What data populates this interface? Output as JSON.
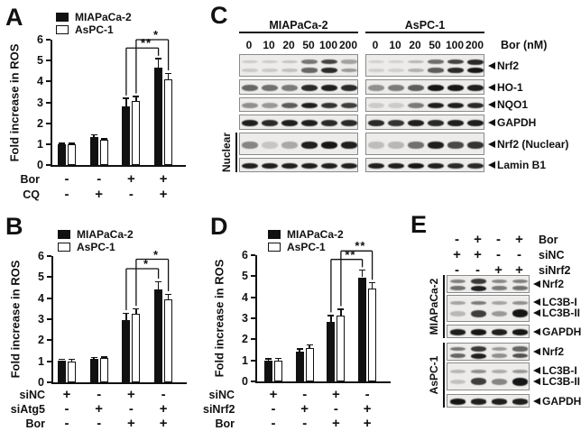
{
  "panels": {
    "A": {
      "letter": "A"
    },
    "B": {
      "letter": "B"
    },
    "C": {
      "letter": "C"
    },
    "D": {
      "letter": "D"
    },
    "E": {
      "letter": "E"
    }
  },
  "colors": {
    "bar_black": "#111111",
    "bar_white": "#ffffff",
    "axis": "#111111"
  },
  "chart_data": [
    {
      "id": "A",
      "type": "bar",
      "title": "",
      "ylabel": "Fold increase in ROS",
      "ylim": [
        0,
        6
      ],
      "yticks": [
        0,
        1,
        2,
        3,
        4,
        5,
        6
      ],
      "legend": [
        "MIAPaCa-2",
        "AsPC-1"
      ],
      "series": [
        {
          "name": "MIAPaCa-2",
          "color": "#111111",
          "values": [
            1.0,
            1.35,
            2.8,
            4.65
          ],
          "errors": [
            0.05,
            0.1,
            0.4,
            0.45
          ]
        },
        {
          "name": "AsPC-1",
          "color": "#ffffff",
          "values": [
            1.0,
            1.2,
            3.05,
            4.1
          ],
          "errors": [
            0.05,
            0.07,
            0.25,
            0.3
          ]
        }
      ],
      "conditions": [
        {
          "label": "Bor",
          "values": [
            "-",
            "-",
            "+",
            "+"
          ]
        },
        {
          "label": "CQ",
          "values": [
            "-",
            "+",
            "-",
            "+"
          ]
        }
      ],
      "significance": [
        {
          "label": "**",
          "from_group": 2,
          "to_group": 3,
          "series": 0,
          "y": 5.6
        },
        {
          "label": "*",
          "from_group": 2,
          "to_group": 3,
          "series": 1,
          "y": 6.0
        }
      ]
    },
    {
      "id": "B",
      "type": "bar",
      "title": "",
      "ylabel": "Fold increase in ROS",
      "ylim": [
        0,
        6
      ],
      "yticks": [
        0,
        1,
        2,
        3,
        4,
        5,
        6
      ],
      "legend": [
        "MIAPaCa-2",
        "AsPC-1"
      ],
      "series": [
        {
          "name": "MIAPaCa-2",
          "color": "#111111",
          "values": [
            1.05,
            1.1,
            2.95,
            4.4
          ],
          "errors": [
            0.06,
            0.08,
            0.35,
            0.4
          ]
        },
        {
          "name": "AsPC-1",
          "color": "#ffffff",
          "values": [
            1.0,
            1.15,
            3.25,
            3.95
          ],
          "errors": [
            0.1,
            0.06,
            0.25,
            0.25
          ]
        }
      ],
      "conditions": [
        {
          "label": "siNC",
          "values": [
            "+",
            "-",
            "+",
            "-"
          ]
        },
        {
          "label": "siAtg5",
          "values": [
            "-",
            "+",
            "-",
            "+"
          ]
        },
        {
          "label": "Bor",
          "values": [
            "-",
            "-",
            "+",
            "+"
          ]
        }
      ],
      "significance": [
        {
          "label": "*",
          "from_group": 2,
          "to_group": 3,
          "series": 0,
          "y": 5.4
        },
        {
          "label": "*",
          "from_group": 2,
          "to_group": 3,
          "series": 1,
          "y": 5.85
        }
      ]
    },
    {
      "id": "D",
      "type": "bar",
      "title": "",
      "ylabel": "Fold increase in ROS",
      "ylim": [
        0,
        6
      ],
      "yticks": [
        0,
        1,
        2,
        3,
        4,
        5,
        6
      ],
      "legend": [
        "MIAPaCa-2",
        "AsPC-1"
      ],
      "series": [
        {
          "name": "MIAPaCa-2",
          "color": "#111111",
          "values": [
            1.0,
            1.4,
            2.85,
            4.95
          ],
          "errors": [
            0.08,
            0.15,
            0.3,
            0.35
          ]
        },
        {
          "name": "AsPC-1",
          "color": "#ffffff",
          "values": [
            1.0,
            1.6,
            3.15,
            4.4
          ],
          "errors": [
            0.1,
            0.15,
            0.3,
            0.3
          ]
        }
      ],
      "conditions": [
        {
          "label": "siNC",
          "values": [
            "+",
            "-",
            "+",
            "-"
          ]
        },
        {
          "label": "siNrf2",
          "values": [
            "-",
            "+",
            "-",
            "+"
          ]
        },
        {
          "label": "Bor",
          "values": [
            "-",
            "-",
            "+",
            "+"
          ]
        }
      ],
      "significance": [
        {
          "label": "**",
          "from_group": 2,
          "to_group": 3,
          "series": 0,
          "y": 5.8
        },
        {
          "label": "**",
          "from_group": 2,
          "to_group": 3,
          "series": 1,
          "y": 6.2
        }
      ]
    }
  ],
  "blots": {
    "C": {
      "groups": [
        {
          "name": "MIAPaCa-2"
        },
        {
          "name": "AsPC-1"
        }
      ],
      "doses": [
        "0",
        "10",
        "20",
        "50",
        "100",
        "200"
      ],
      "unit": "Bor (nM)",
      "nuclear_label": "Nuclear",
      "rows": [
        {
          "label": "Nrf2",
          "style": "doublet",
          "nuclear": false,
          "lanes": [
            [
              0.06,
              0.06,
              0.1,
              0.55,
              0.85,
              0.3
            ],
            [
              0.03,
              0.03,
              0.18,
              0.6,
              0.85,
              1.0
            ]
          ]
        },
        {
          "label": "HO-1",
          "style": "single",
          "nuclear": false,
          "lanes": [
            [
              0.55,
              0.5,
              0.45,
              0.85,
              0.9,
              0.85
            ],
            [
              0.35,
              0.45,
              0.6,
              0.95,
              0.95,
              0.9
            ]
          ]
        },
        {
          "label": "NQO1",
          "style": "single",
          "nuclear": false,
          "lanes": [
            [
              0.35,
              0.3,
              0.6,
              0.9,
              0.8,
              0.75
            ],
            [
              0.05,
              0.05,
              0.45,
              0.9,
              0.9,
              0.85
            ]
          ]
        },
        {
          "label": "GAPDH",
          "style": "single",
          "nuclear": false,
          "lanes": [
            [
              0.9,
              0.85,
              0.9,
              0.9,
              0.85,
              0.85
            ],
            [
              0.85,
              0.8,
              0.9,
              0.85,
              0.9,
              0.9
            ]
          ]
        },
        {
          "label": "Nrf2 (Nuclear)",
          "style": "single",
          "nuclear": true,
          "lanes": [
            [
              0.4,
              0.08,
              0.22,
              0.9,
              0.95,
              0.9
            ],
            [
              0.12,
              0.15,
              0.5,
              0.9,
              0.7,
              0.8
            ]
          ]
        },
        {
          "label": "Lamin B1",
          "style": "single",
          "nuclear": true,
          "lanes": [
            [
              0.9,
              0.9,
              0.9,
              0.9,
              0.9,
              0.9
            ],
            [
              0.9,
              0.9,
              0.95,
              0.9,
              0.85,
              0.85
            ]
          ]
        }
      ]
    },
    "E": {
      "conditions": [
        {
          "label": "Bor",
          "values": [
            "-",
            "+",
            "-",
            "+"
          ]
        },
        {
          "label": "siNC",
          "values": [
            "+",
            "+",
            "-",
            "-"
          ]
        },
        {
          "label": "siNrf2",
          "values": [
            "-",
            "-",
            "+",
            "+"
          ]
        }
      ],
      "blocks": [
        {
          "name": "MIAPaCa-2",
          "rows": [
            {
              "labels": [
                "Nrf2"
              ],
              "style": "doublet",
              "lanes": [
                [
                  0.5,
                  0.9,
                  0.45,
                  0.5
                ]
              ]
            },
            {
              "labels": [
                "LC3B-I",
                "LC3B-II"
              ],
              "style": "lc3b",
              "lanes": [
                [
                  0.25,
                  0.45,
                  0.25,
                  0.35
                ],
                [
                  0.15,
                  0.75,
                  0.3,
                  1.0
                ]
              ]
            },
            {
              "labels": [
                "GAPDH"
              ],
              "style": "single",
              "lanes": [
                [
                  0.9,
                  0.95,
                  0.9,
                  0.95
                ]
              ]
            }
          ]
        },
        {
          "name": "AsPC-1",
          "rows": [
            {
              "labels": [
                "Nrf2"
              ],
              "style": "doublet",
              "lanes": [
                [
                  0.55,
                  0.9,
                  0.35,
                  0.65
                ]
              ]
            },
            {
              "labels": [
                "LC3B-I",
                "LC3B-II"
              ],
              "style": "lc3b",
              "lanes": [
                [
                  0.15,
                  0.35,
                  0.2,
                  0.3
                ],
                [
                  0.1,
                  0.75,
                  0.4,
                  1.0
                ]
              ]
            },
            {
              "labels": [
                "GAPDH"
              ],
              "style": "single",
              "lanes": [
                [
                  0.95,
                  0.9,
                  0.9,
                  0.9
                ]
              ]
            }
          ]
        }
      ]
    }
  }
}
